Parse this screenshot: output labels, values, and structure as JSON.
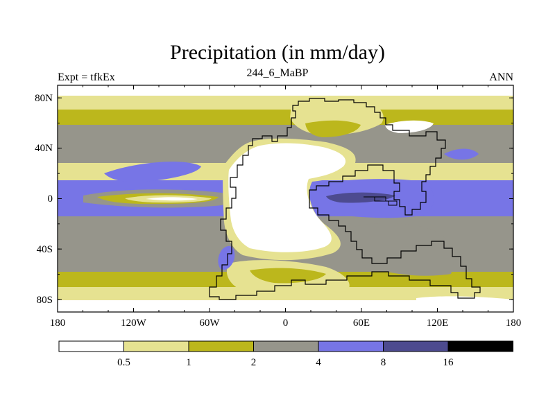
{
  "title": "Precipitation (in mm/day)",
  "subtitle": "244_6_MaBP",
  "left_label": "Expt = tfkEx",
  "right_label": "ANN",
  "colors": {
    "band_0": "#ffffff",
    "band_1": "#e6e291",
    "band_2": "#bcb71c",
    "band_3": "#96958b",
    "band_4": "#7775e6",
    "band_5": "#4d4b8f",
    "band_6": "#000000"
  },
  "chart_data": {
    "type": "map",
    "lon_range": [
      -180,
      180
    ],
    "lat_range": [
      -90,
      90
    ],
    "x_ticks": [
      "180",
      "120W",
      "60W",
      "0",
      "60E",
      "120E",
      "180"
    ],
    "x_tick_values": [
      -180,
      -120,
      -60,
      0,
      60,
      120,
      180
    ],
    "y_ticks": [
      "80N",
      "40N",
      "0",
      "40S",
      "80S"
    ],
    "y_tick_values": [
      80,
      40,
      0,
      -40,
      -80
    ],
    "colorbar": {
      "levels": [
        "0.5",
        "1",
        "2",
        "4",
        "8",
        "16"
      ],
      "level_values": [
        0.5,
        1,
        2,
        4,
        8,
        16
      ]
    }
  }
}
